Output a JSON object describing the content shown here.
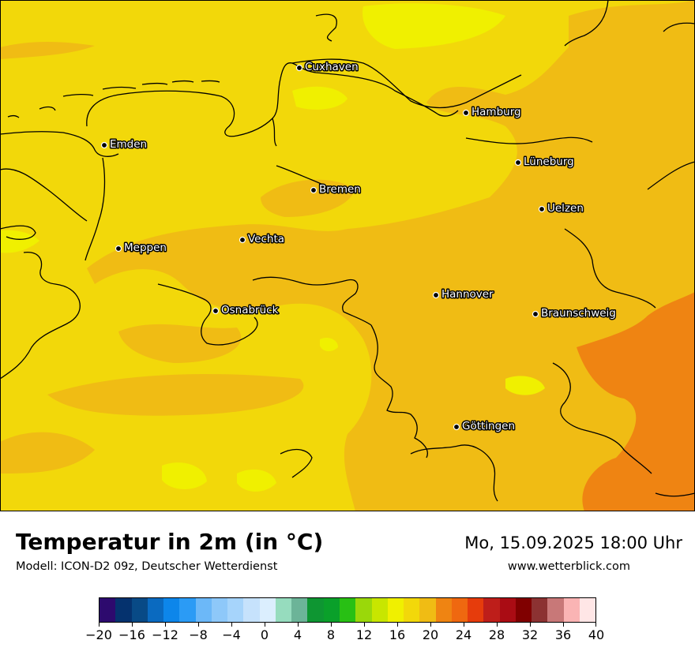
{
  "map": {
    "colors": {
      "t16_18": "#f2d80a",
      "t18_20": "#f0bc14",
      "t20_22": "#ef8412",
      "t14_16": "#f0f000",
      "border": "#000000",
      "frame": "#000000"
    },
    "cities": [
      {
        "name": "Cuxhaven"
      },
      {
        "name": "Hamburg"
      },
      {
        "name": "Emden"
      },
      {
        "name": "Lüneburg"
      },
      {
        "name": "Bremen"
      },
      {
        "name": "Uelzen"
      },
      {
        "name": "Vechta"
      },
      {
        "name": "Meppen"
      },
      {
        "name": "Hannover"
      },
      {
        "name": "Osnabrück"
      },
      {
        "name": "Braunschweig"
      },
      {
        "name": "Göttingen"
      }
    ]
  },
  "header": {
    "title": "Temperatur in 2m (in °C)",
    "subtitle": "Modell: ICON-D2 09z, Deutscher Wetterdienst",
    "datetime": "Mo, 15.09.2025 18:00 Uhr",
    "website": "www.wetterblick.com"
  },
  "colorbar": {
    "colors": [
      "#2d0a6e",
      "#05326e",
      "#084a86",
      "#0a6ac0",
      "#0d86ea",
      "#2b9bf5",
      "#6cb8f8",
      "#8ec8f9",
      "#a6d4fb",
      "#c6e2fc",
      "#dbeefe",
      "#96dcbe",
      "#6cb498",
      "#0e9632",
      "#0aa02a",
      "#28c014",
      "#9ad80a",
      "#c8e600",
      "#f0f000",
      "#f2d80a",
      "#f0bc14",
      "#ef8412",
      "#ef6810",
      "#e63c0c",
      "#be1e1a",
      "#aa0c14",
      "#800000",
      "#8c3232",
      "#c87878",
      "#fab4b4",
      "#ffe6e6"
    ],
    "tick_labels": [
      "−20",
      "−16",
      "−12",
      "−8",
      "−4",
      "0",
      "4",
      "8",
      "12",
      "16",
      "20",
      "24",
      "28",
      "32",
      "36",
      "40"
    ]
  }
}
